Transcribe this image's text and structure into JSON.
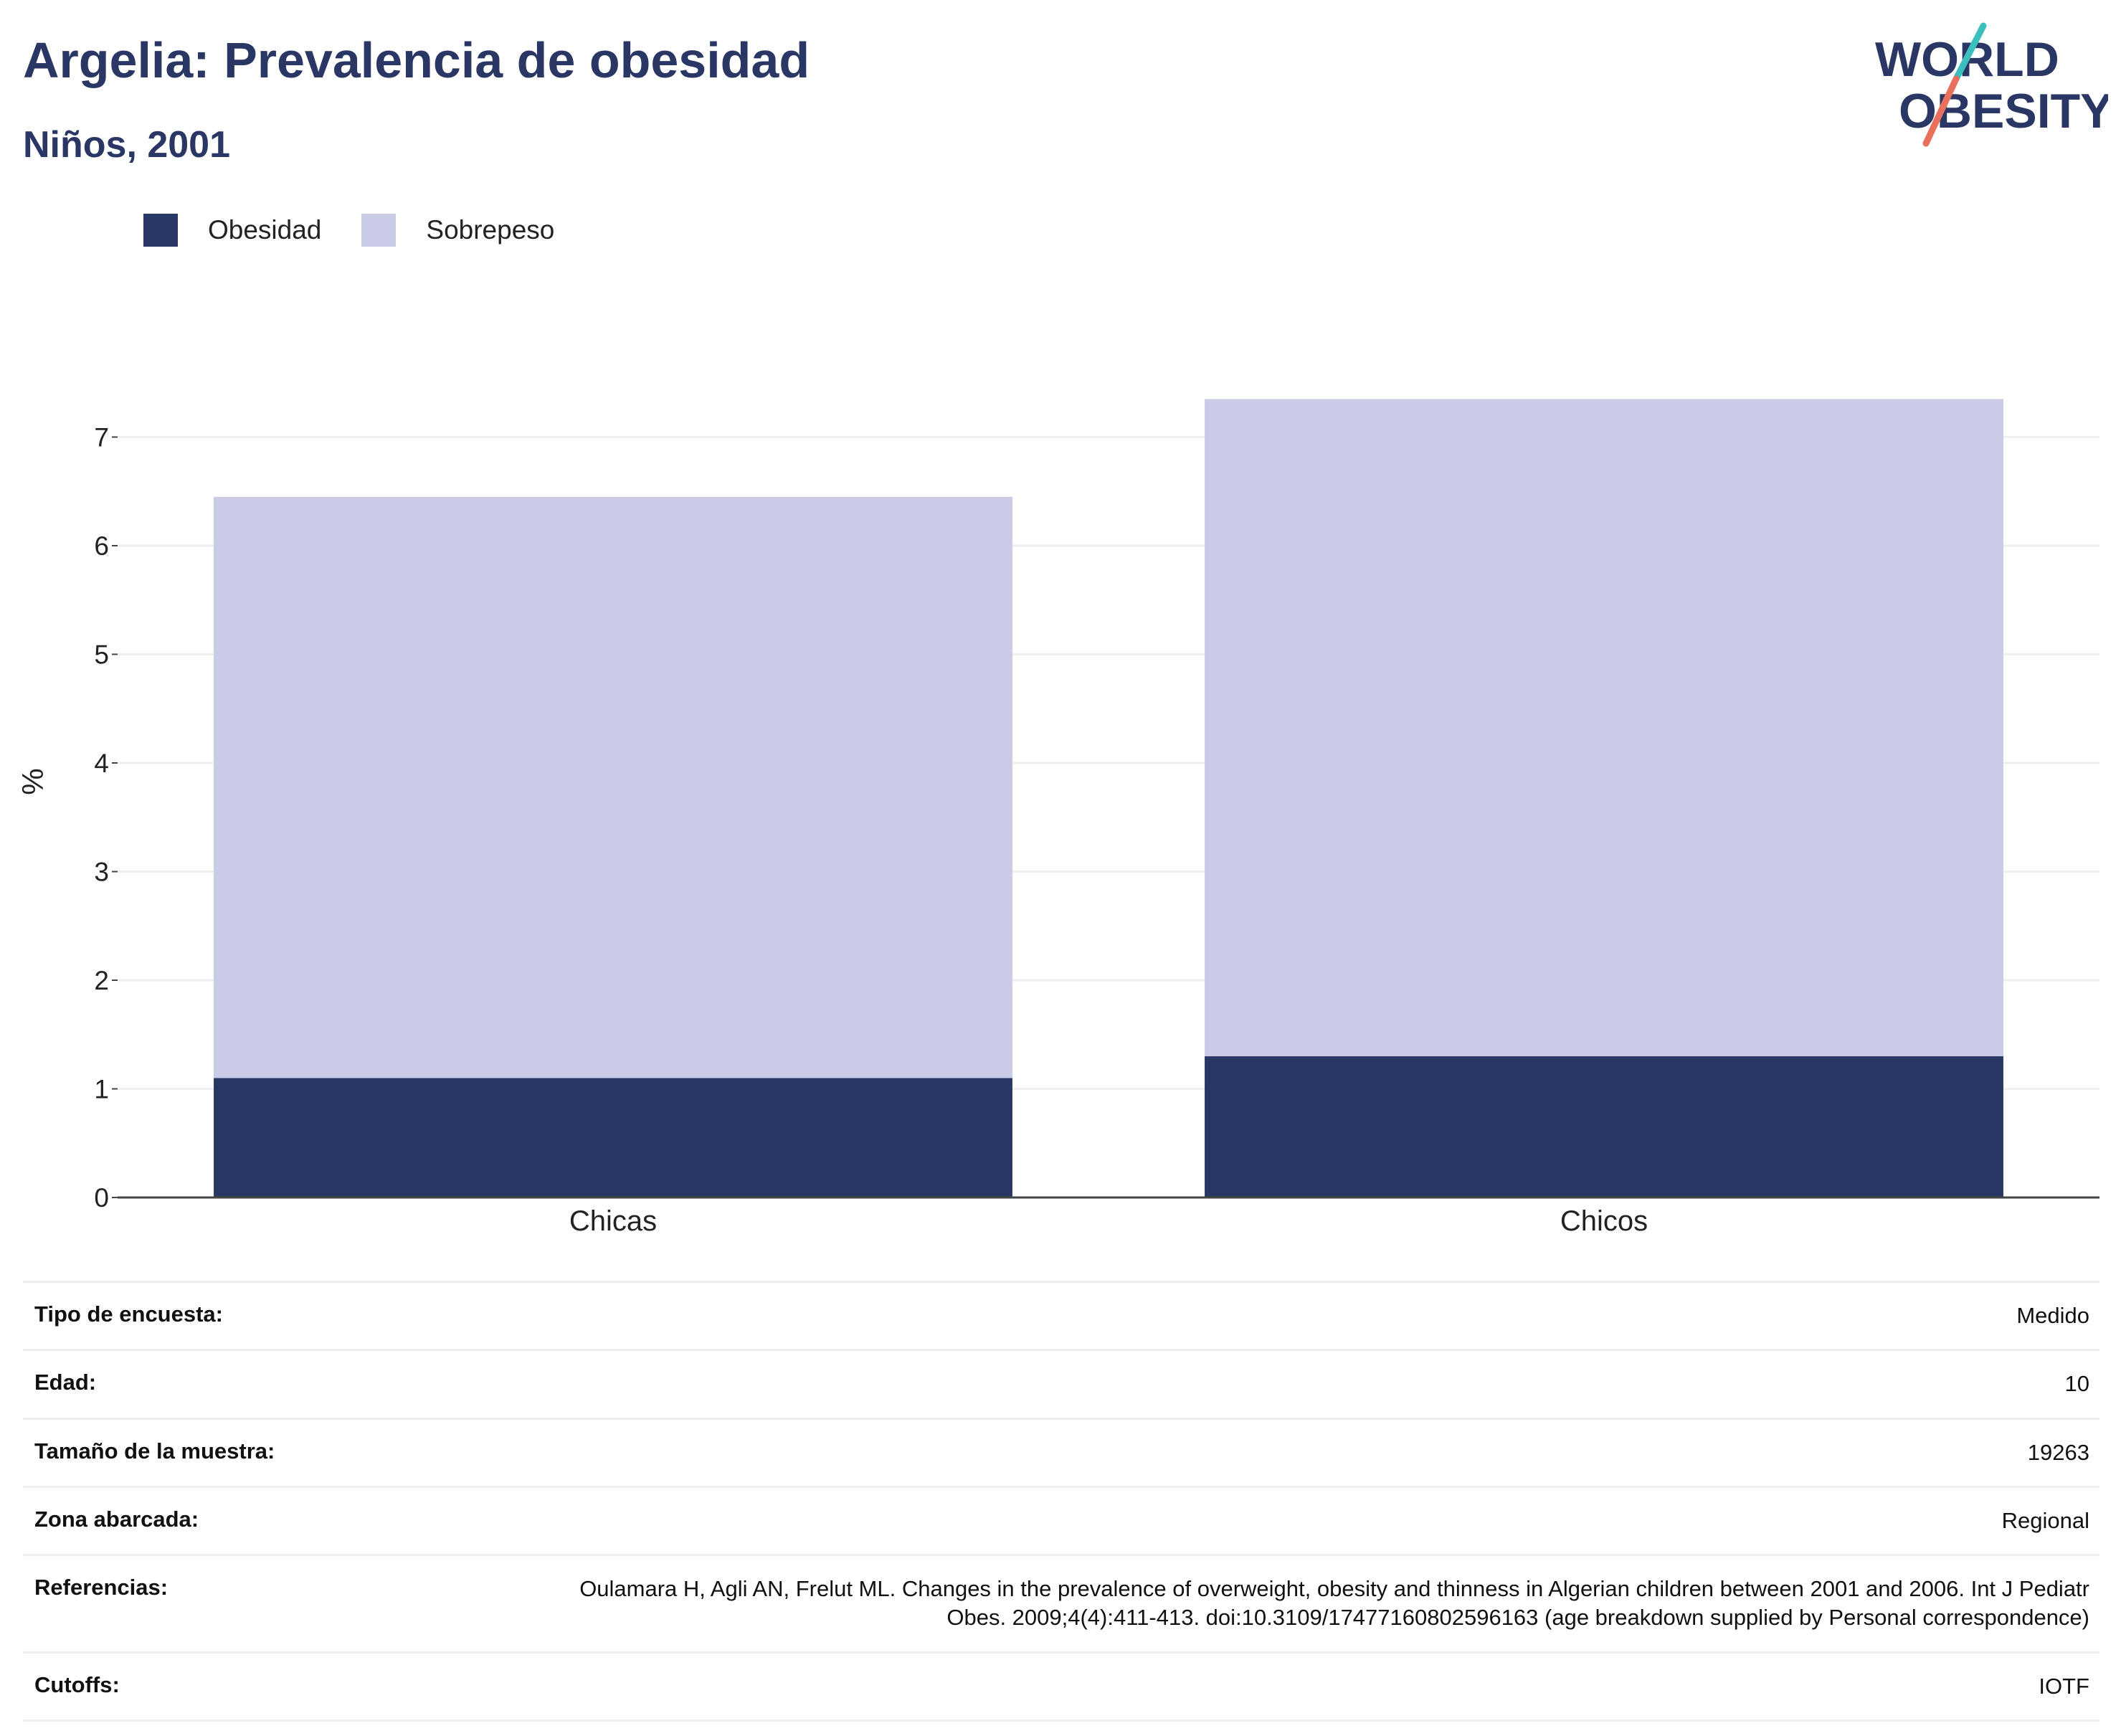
{
  "header": {
    "title": "Argelia: Prevalencia de obesidad",
    "subtitle": "Niños, 2001",
    "logo_line1": "WORLD",
    "logo_line2": "OBESITY"
  },
  "colors": {
    "obesidad": "#2a3764",
    "sobrepeso": "#cacce7",
    "grid": "#eceef2",
    "logo_teal": "#3bbfbf",
    "logo_red": "#e8705c"
  },
  "chart_data": {
    "type": "bar",
    "stacked": true,
    "categories": [
      "Chicas",
      "Chicos"
    ],
    "series": [
      {
        "name": "Obesidad",
        "values": [
          1.1,
          1.3
        ]
      },
      {
        "name": "Sobrepeso",
        "values": [
          5.35,
          6.05
        ]
      }
    ],
    "ylabel": "%",
    "ylim": [
      0,
      7.5
    ],
    "yticks": [
      0,
      1,
      2,
      3,
      4,
      5,
      6,
      7
    ],
    "grid": true,
    "legend_position": "top-left"
  },
  "meta": [
    {
      "key": "Tipo de encuesta:",
      "value": "Medido"
    },
    {
      "key": "Edad:",
      "value": "10"
    },
    {
      "key": "Tamaño de la muestra:",
      "value": "19263"
    },
    {
      "key": "Zona abarcada:",
      "value": "Regional"
    },
    {
      "key": "Referencias:",
      "value": "Oulamara H, Agli AN, Frelut ML. Changes in the prevalence of overweight, obesity and thinness in Algerian children between 2001 and 2006. Int J Pediatr Obes. 2009;4(4):411-413. doi:10.3109/17477160802596163 (age breakdown supplied by Personal correspondence)"
    },
    {
      "key": "Cutoffs:",
      "value": "IOTF"
    }
  ]
}
